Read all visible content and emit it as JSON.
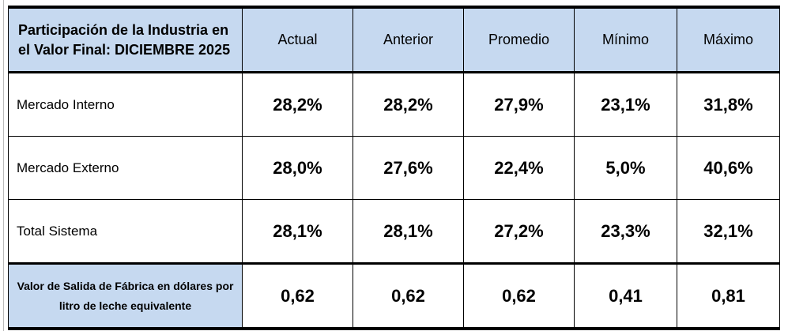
{
  "table": {
    "title": "Participación de la Industria en el Valor Final: DICIEMBRE 2025",
    "columns": [
      "Actual",
      "Anterior",
      "Promedio",
      "Mínimo",
      "Máximo"
    ],
    "rows": [
      {
        "label": "Mercado Interno",
        "cells": [
          "28,2%",
          "28,2%",
          "27,9%",
          "23,1%",
          "31,8%"
        ]
      },
      {
        "label": "Mercado Externo",
        "cells": [
          "28,0%",
          "27,6%",
          "22,4%",
          "5,0%",
          "40,6%"
        ]
      },
      {
        "label": "Total Sistema",
        "cells": [
          "28,1%",
          "28,1%",
          "27,2%",
          "23,3%",
          "32,1%"
        ]
      },
      {
        "label": "Valor de Salida de Fábrica en dólares por litro de leche equivalente",
        "cells": [
          "0,62",
          "0,62",
          "0,62",
          "0,41",
          "0,81"
        ]
      }
    ]
  }
}
